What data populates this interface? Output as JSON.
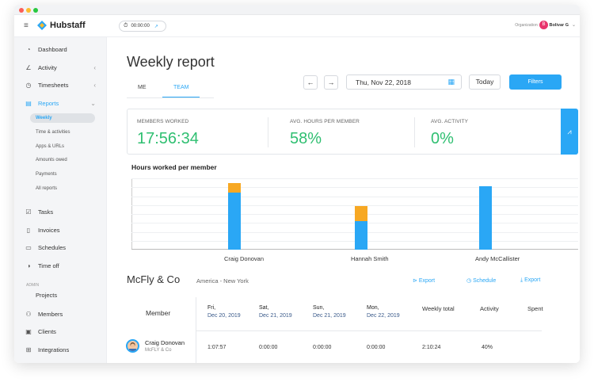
{
  "app": {
    "name": "Hubstaff"
  },
  "timer": {
    "value": "00:00:00"
  },
  "org": {
    "label": "Organization:",
    "avatar_letter": "B",
    "name": "Bolivar G"
  },
  "sidebar": {
    "items": [
      {
        "label": "Dashboard",
        "icon": "dashboard-icon"
      },
      {
        "label": "Activity",
        "icon": "activity-icon"
      },
      {
        "label": "Timesheets",
        "icon": "clock-icon"
      },
      {
        "label": "Reports",
        "icon": "reports-icon"
      }
    ],
    "report_subitems": [
      "Weekly",
      "Time & activities",
      "Apps & URLs",
      "Amounts owed",
      "Payments",
      "All reports"
    ],
    "items2": [
      {
        "label": "Tasks",
        "icon": "tasks-icon"
      },
      {
        "label": "Invoices",
        "icon": "invoices-icon"
      },
      {
        "label": "Schedules",
        "icon": "schedules-icon"
      },
      {
        "label": "Time off",
        "icon": "time-off-icon"
      }
    ],
    "admin_heading": "ADMIN",
    "admin_items": [
      {
        "label": "Projects"
      },
      {
        "label": "Members",
        "icon": "members-icon"
      },
      {
        "label": "Clients",
        "icon": "clients-icon"
      },
      {
        "label": "Integrations",
        "icon": "integrations-icon"
      }
    ]
  },
  "page": {
    "title": "Weekly report",
    "tabs": [
      "ME",
      "TEAM"
    ]
  },
  "controls": {
    "date": "Thu, Nov 22, 2018",
    "today": "Today",
    "filters": "Filters"
  },
  "stats": [
    {
      "label": "MEMBERS WORKED",
      "value": "17:56:34"
    },
    {
      "label": "AVG. HOURS PER MEMBER",
      "value": "58%"
    },
    {
      "label": "AVG. ACTIVITY",
      "value": "0%"
    }
  ],
  "chart_data": {
    "type": "bar",
    "title": "Hours worked per member",
    "categories": [
      "Craig Donovan",
      "Hannah Smith",
      "Andy McCallister"
    ],
    "series": [
      {
        "values": [
          6.0,
          3.0,
          6.7
        ],
        "color": "#2aa7f5"
      },
      {
        "values": [
          1.0,
          1.6,
          0
        ],
        "color": "#f7a823"
      }
    ],
    "ylim": [
      0,
      7.5
    ],
    "grid": true
  },
  "team": {
    "name": "McFly & Co",
    "timezone": "America - New York",
    "export1": "Export",
    "schedule": "Schedule",
    "export2": "Export"
  },
  "table": {
    "member_header": "Member",
    "days": [
      {
        "day": "Fri,",
        "date": "Dec 20, 2019"
      },
      {
        "day": "Sat,",
        "date": "Dec 21, 2019"
      },
      {
        "day": "Sun,",
        "date": "Dec 21, 2019"
      },
      {
        "day": "Mon,",
        "date": "Dec 22, 2019"
      }
    ],
    "weekly_total": "Weekly total",
    "activity": "Activity",
    "spent": "Spent",
    "rows": [
      {
        "name": "Craig Donovan",
        "company": "McFLY & Co",
        "d1": "1:07:57",
        "d2": "0:00:00",
        "d3": "0:00:00",
        "d4": "0:00:00",
        "total": "2:10:24",
        "activity": "40%"
      }
    ]
  },
  "colors": {
    "accent": "#2aa7f5",
    "green": "#2fbf71",
    "orange": "#f7a823"
  }
}
